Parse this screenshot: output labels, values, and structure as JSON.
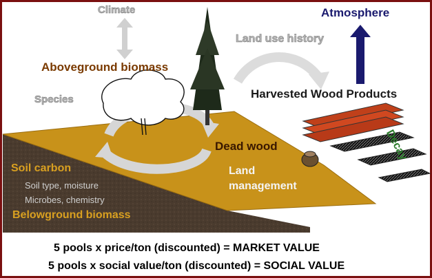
{
  "labels": {
    "climate": "Climate",
    "atmosphere": "Atmosphere",
    "land_use_history": "Land use history",
    "aboveground_biomass": "Aboveground biomass",
    "species": "Species",
    "harvested_wood_products": "Harvested Wood Products",
    "decay": "Decay",
    "dead_wood": "Dead wood",
    "land_management": [
      "Land",
      "management"
    ],
    "soil_carbon": "Soil carbon",
    "soil_type": "Soil type, moisture",
    "microbes": "Microbes, chemistry",
    "belowground_biomass": "Belowground biomass"
  },
  "value_lines": [
    "5 pools x price/ton (discounted) = MARKET VALUE",
    "5 pools x social value/ton (discounted) = SOCIAL VALUE"
  ],
  "colors": {
    "frame": "#7a1010",
    "soil_surface": "#c8921a",
    "soil_dark": "#4a3a2c",
    "wood_products": "#c0401a",
    "atmosphere_arrow": "#1a1a6e",
    "decay_text": "#2a7a2a"
  }
}
